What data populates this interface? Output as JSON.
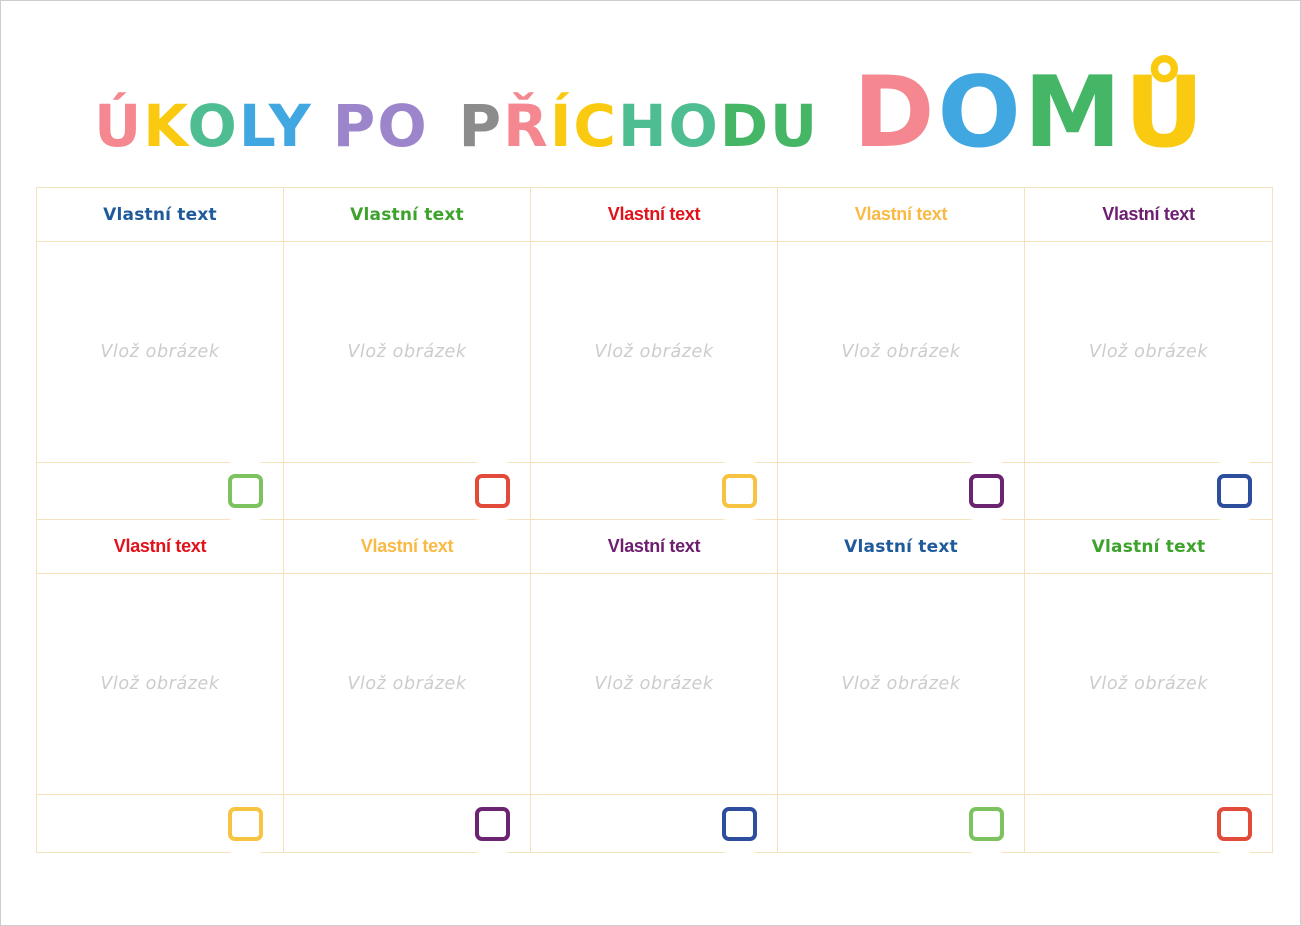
{
  "page": {
    "background": "#ffffff",
    "border_color": "#cdcdcd"
  },
  "title": {
    "full_text": "ÚKOLY PO PŘÍCHODU DOMŮ",
    "words": [
      {
        "text": "ÚKOLY",
        "letters": [
          {
            "ch": "Ú",
            "color": "#f4878f"
          },
          {
            "ch": "K",
            "color": "#f9ca10"
          },
          {
            "ch": "O",
            "color": "#4fbd92"
          },
          {
            "ch": "L",
            "color": "#41a7e1"
          },
          {
            "ch": "Y",
            "color": "#41a7e1"
          }
        ]
      },
      {
        "text": "PO",
        "letters": [
          {
            "ch": "P",
            "color": "#9c85cb"
          },
          {
            "ch": "O",
            "color": "#9c85cb"
          }
        ]
      },
      {
        "text": "PŘÍCHODU",
        "letters": [
          {
            "ch": "P",
            "color": "#8c8c8c"
          },
          {
            "ch": "Ř",
            "color": "#f4878f"
          },
          {
            "ch": "Í",
            "color": "#f9ca10"
          },
          {
            "ch": "C",
            "color": "#f9ca10"
          },
          {
            "ch": "H",
            "color": "#4fbd92"
          },
          {
            "ch": "O",
            "color": "#4fbd92"
          },
          {
            "ch": "D",
            "color": "#45b666"
          },
          {
            "ch": "U",
            "color": "#45b666"
          }
        ]
      },
      {
        "text": "DOMŮ",
        "letters": [
          {
            "ch": "D",
            "color": "#f4878f"
          },
          {
            "ch": "O",
            "color": "#41a7e1"
          },
          {
            "ch": "M",
            "color": "#45b666"
          },
          {
            "ch": "Ů",
            "color": "#f9ca10"
          }
        ]
      }
    ]
  },
  "grid": {
    "border_color": "#f5e2bd",
    "placeholder_color": "#cccccc",
    "rows": [
      {
        "cells": [
          {
            "header": "Vlastní text",
            "header_color": "#1f5a9b",
            "header_font": "rounded",
            "placeholder": "Vlož obrázek",
            "checkbox_color": "#7cc25f"
          },
          {
            "header": "Vlastní text",
            "header_color": "#3da32c",
            "header_font": "rounded",
            "placeholder": "Vlož obrázek",
            "checkbox_color": "#e24a3a"
          },
          {
            "header": "Vlastní text",
            "header_color": "#e2121b",
            "header_font": "condensed",
            "placeholder": "Vlož obrázek",
            "checkbox_color": "#f6c441"
          },
          {
            "header": "Vlastní text",
            "header_color": "#f9ba45",
            "header_font": "condensed",
            "placeholder": "Vlož obrázek",
            "checkbox_color": "#6b2470"
          },
          {
            "header": "Vlastní text",
            "header_color": "#6d2071",
            "header_font": "condensed",
            "placeholder": "Vlož obrázek",
            "checkbox_color": "#2d4d9d"
          }
        ]
      },
      {
        "cells": [
          {
            "header": "Vlastní text",
            "header_color": "#e2121b",
            "header_font": "condensed",
            "placeholder": "Vlož obrázek",
            "checkbox_color": "#f6c441"
          },
          {
            "header": "Vlastní text",
            "header_color": "#f9ba45",
            "header_font": "condensed",
            "placeholder": "Vlož obrázek",
            "checkbox_color": "#6b2470"
          },
          {
            "header": "Vlastní text",
            "header_color": "#6d2071",
            "header_font": "condensed",
            "placeholder": "Vlož obrázek",
            "checkbox_color": "#2d4d9d"
          },
          {
            "header": "Vlastní text",
            "header_color": "#1f5a9b",
            "header_font": "rounded",
            "placeholder": "Vlož obrázek",
            "checkbox_color": "#7cc25f"
          },
          {
            "header": "Vlastní text",
            "header_color": "#3da32c",
            "header_font": "rounded",
            "placeholder": "Vlož obrázek",
            "checkbox_color": "#e24a3a"
          }
        ]
      }
    ]
  }
}
